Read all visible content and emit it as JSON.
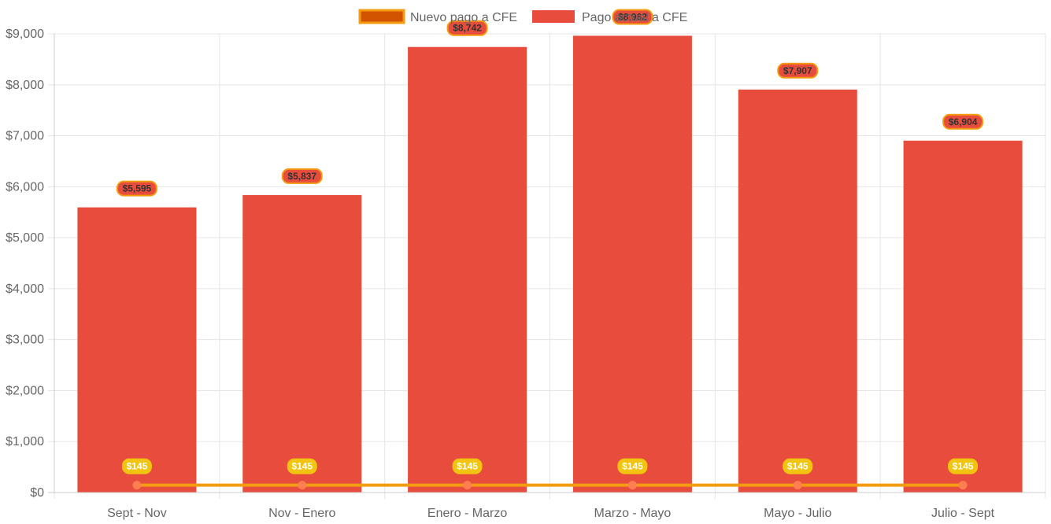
{
  "chart_data": {
    "type": "bar",
    "categories": [
      "Sept - Nov",
      "Nov - Enero",
      "Enero - Marzo",
      "Marzo - Mayo",
      "Mayo - Julio",
      "Julio - Sept"
    ],
    "series": [
      {
        "name": "Pago actual a CFE",
        "type": "bar",
        "values": [
          5595,
          5837,
          8742,
          8962,
          7907,
          6904
        ],
        "data_labels": [
          "$5,595",
          "$5,837",
          "$8,742",
          "$8,962",
          "$7,907",
          "$6,904"
        ],
        "color": "#e74c3c",
        "label_bg": "#e74c3c",
        "label_border": "#f39c12",
        "label_text_color": "#333333"
      },
      {
        "name": "Nuevo pago a CFE",
        "type": "line",
        "values": [
          145,
          145,
          145,
          145,
          145,
          145
        ],
        "data_labels": [
          "$145",
          "$145",
          "$145",
          "$145",
          "$145",
          "$145"
        ],
        "color": "#f39c12",
        "legend_fill": "#d35400",
        "point_color": "#ff7f50",
        "label_bg": "#f1c40f",
        "label_text_color": "#ffffff"
      }
    ],
    "y_ticks": [
      "$0",
      "$1,000",
      "$2,000",
      "$3,000",
      "$4,000",
      "$5,000",
      "$6,000",
      "$7,000",
      "$8,000",
      "$9,000"
    ],
    "ylim": [
      0,
      9000
    ],
    "grid": true,
    "legend_position": "top-center",
    "xlabel": "",
    "ylabel": "",
    "title": ""
  }
}
